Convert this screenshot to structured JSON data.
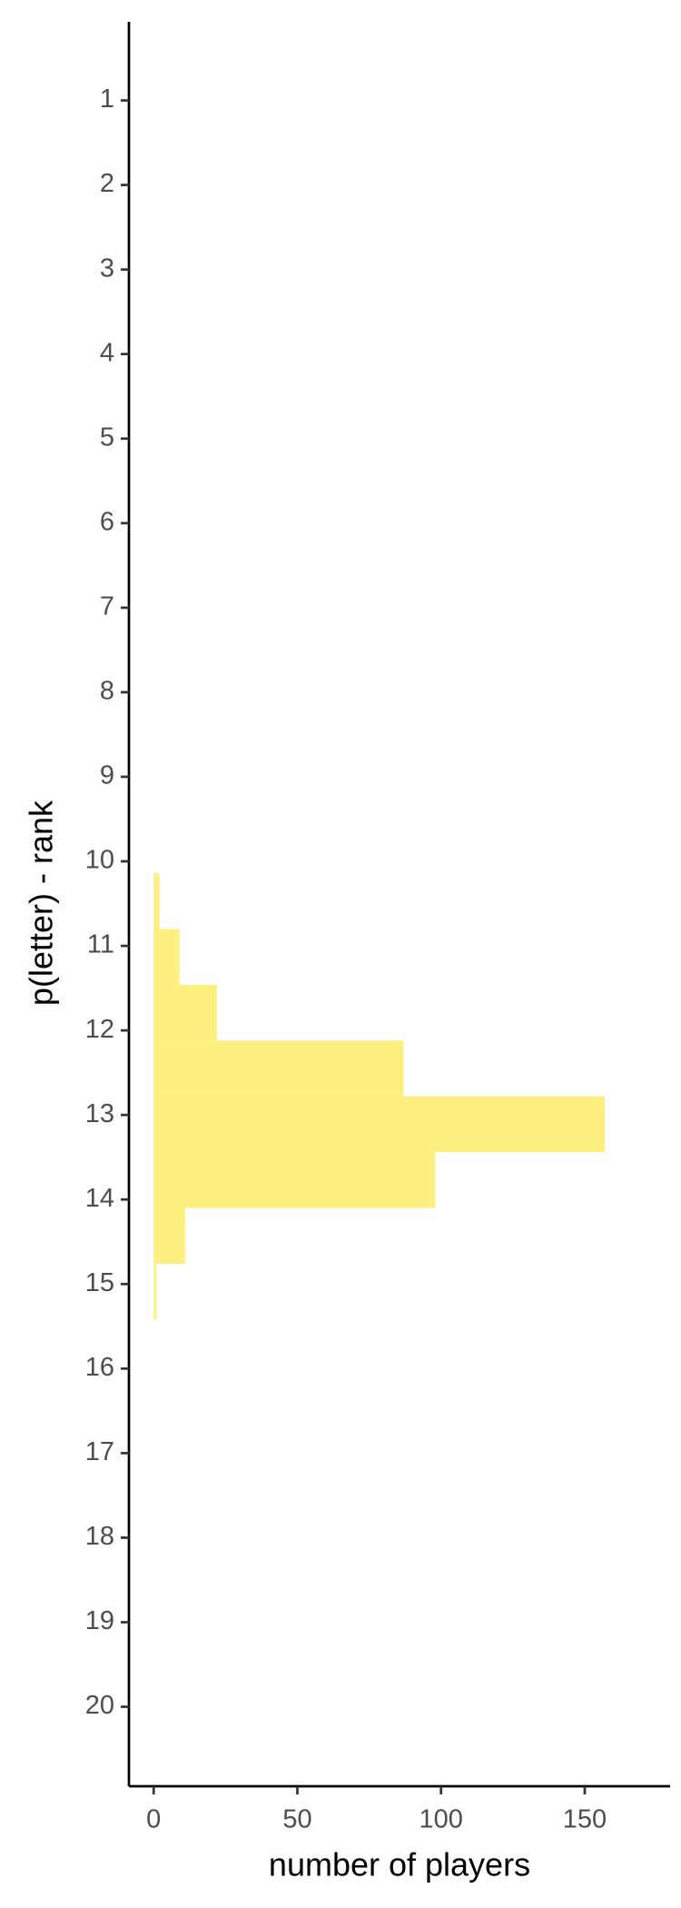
{
  "chart_data": {
    "type": "histogram",
    "orientation": "horizontal",
    "xlabel": "number of players",
    "ylabel": "p(letter) - rank",
    "bins": [
      10.14,
      10.8,
      11.46,
      12.12,
      12.78,
      13.44,
      14.1,
      14.76,
      15.42
    ],
    "values": [
      2,
      9,
      22,
      87,
      157,
      98,
      11,
      1
    ],
    "color": "#fdef80",
    "xlim": [
      -8.6,
      179.7
    ],
    "xticks": [
      0,
      50,
      100,
      150
    ],
    "ylim": [
      0.07,
      20.94
    ],
    "y_reversed": true,
    "yticks": [
      1,
      2,
      3,
      4,
      5,
      6,
      7,
      8,
      9,
      10,
      11,
      12,
      13,
      14,
      15,
      16,
      17,
      18,
      19,
      20
    ],
    "grid": false
  }
}
